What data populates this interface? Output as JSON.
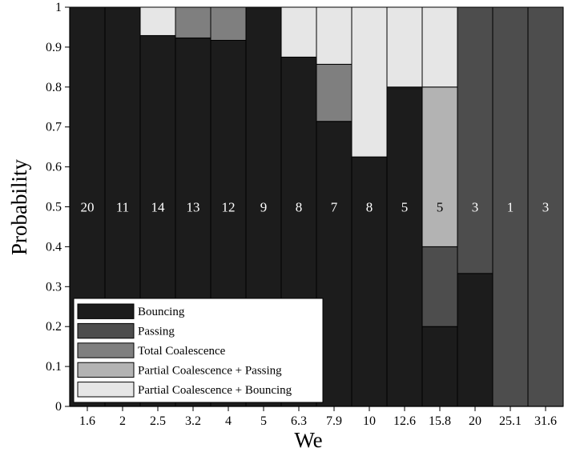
{
  "chart_data": {
    "type": "bar",
    "stacked": true,
    "title": "",
    "xlabel": "We",
    "ylabel": "Probability",
    "ylim": [
      0,
      1
    ],
    "yticks": [
      "0",
      "0.1",
      "0.2",
      "0.3",
      "0.4",
      "0.5",
      "0.6",
      "0.7",
      "0.8",
      "0.9",
      "1"
    ],
    "categories": [
      "1.6",
      "2",
      "2.5",
      "3.2",
      "4",
      "5",
      "6.3",
      "7.9",
      "10",
      "12.6",
      "15.8",
      "20",
      "25.1",
      "31.6"
    ],
    "counts": [
      "20",
      "11",
      "14",
      "13",
      "12",
      "9",
      "8",
      "7",
      "8",
      "5",
      "5",
      "3",
      "1",
      "3"
    ],
    "legend_position": "bottom-left",
    "grid": false,
    "series": [
      {
        "name": "Bouncing",
        "color": "#1c1c1c",
        "values": [
          1,
          1,
          0.929,
          0.923,
          0.917,
          1,
          0.875,
          0.714,
          0.625,
          0.8,
          0.2,
          0.333,
          0,
          0
        ]
      },
      {
        "name": "Passing",
        "color": "#4d4d4d",
        "values": [
          0,
          0,
          0,
          0,
          0,
          0,
          0,
          0,
          0,
          0,
          0.2,
          0.667,
          1,
          1
        ]
      },
      {
        "name": "Total Coalescence",
        "color": "#7f7f7f",
        "values": [
          0,
          0,
          0,
          0.077,
          0.083,
          0,
          0,
          0.143,
          0,
          0,
          0,
          0,
          0,
          0
        ]
      },
      {
        "name": "Partial Coalescence + Passing",
        "color": "#b3b3b3",
        "values": [
          0,
          0,
          0,
          0,
          0,
          0,
          0,
          0,
          0,
          0,
          0.4,
          0,
          0,
          0
        ]
      },
      {
        "name": "Partial Coalescence + Bouncing",
        "color": "#e6e6e6",
        "values": [
          0,
          0,
          0.071,
          0,
          0,
          0,
          0.125,
          0.143,
          0.375,
          0.2,
          0.2,
          0,
          0,
          0
        ]
      }
    ]
  }
}
